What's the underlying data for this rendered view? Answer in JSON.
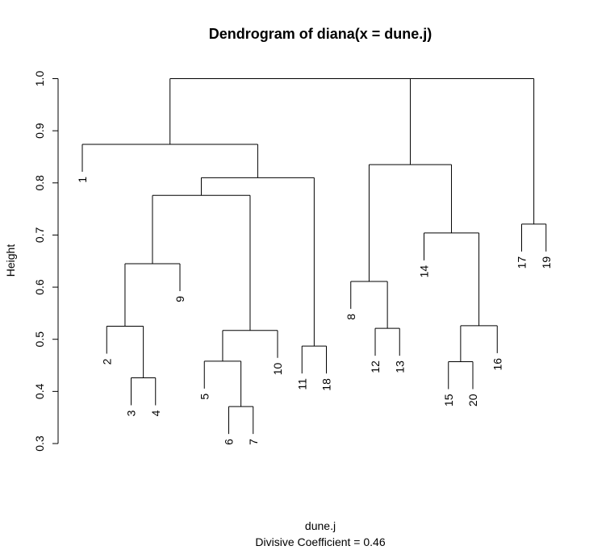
{
  "chart_data": {
    "type": "dendrogram",
    "title": "Dendrogram of  diana(x = dune.j)",
    "xlabel": "dune.j",
    "sublabel": "Divisive Coefficient =  0.46",
    "ylabel": "Height",
    "ylim": [
      0.3,
      1.0
    ],
    "yticks": [
      "0.3",
      "0.4",
      "0.5",
      "0.6",
      "0.7",
      "0.8",
      "0.9",
      "1.0"
    ],
    "leaf_order": [
      "1",
      "2",
      "3",
      "4",
      "9",
      "5",
      "6",
      "7",
      "10",
      "11",
      "18",
      "8",
      "12",
      "13",
      "14",
      "15",
      "20",
      "16",
      "17",
      "19"
    ],
    "merges": [
      {
        "id": "m1",
        "left": "6",
        "right": "7",
        "height": 0.371
      },
      {
        "id": "m2",
        "left": "3",
        "right": "4",
        "height": 0.426
      },
      {
        "id": "m3",
        "left": "15",
        "right": "20",
        "height": 0.457
      },
      {
        "id": "m4",
        "left": "5",
        "right": "m1",
        "height": 0.458
      },
      {
        "id": "m5",
        "left": "11",
        "right": "18",
        "height": 0.487
      },
      {
        "id": "m6",
        "left": "m4",
        "right": "10",
        "height": 0.517
      },
      {
        "id": "m7",
        "left": "12",
        "right": "13",
        "height": 0.521
      },
      {
        "id": "m8",
        "left": "2",
        "right": "m2",
        "height": 0.525
      },
      {
        "id": "m9",
        "left": "m3",
        "right": "16",
        "height": 0.526
      },
      {
        "id": "m10",
        "left": "8",
        "right": "m7",
        "height": 0.611
      },
      {
        "id": "m11",
        "left": "m8",
        "right": "9",
        "height": 0.645
      },
      {
        "id": "m12",
        "left": "14",
        "right": "m9",
        "height": 0.704
      },
      {
        "id": "m13",
        "left": "17",
        "right": "19",
        "height": 0.721
      },
      {
        "id": "m14",
        "left": "m11",
        "right": "m6",
        "height": 0.776
      },
      {
        "id": "m15",
        "left": "m14",
        "right": "m5",
        "height": 0.81
      },
      {
        "id": "m16",
        "left": "m10",
        "right": "m12",
        "height": 0.835
      },
      {
        "id": "m17",
        "left": "1",
        "right": "m15",
        "height": 0.874
      },
      {
        "id": "m18",
        "left": "m17",
        "right": "m16",
        "height": 1.0
      },
      {
        "id": "m19",
        "left": "m18",
        "right": "m13",
        "height": 1.0
      }
    ],
    "leaf_heights": {
      "1": 0.874,
      "2": 0.525,
      "3": 0.426,
      "4": 0.426,
      "9": 0.645,
      "5": 0.458,
      "6": 0.371,
      "7": 0.371,
      "10": 0.517,
      "11": 0.487,
      "18": 0.487,
      "8": 0.611,
      "12": 0.521,
      "13": 0.521,
      "14": 0.704,
      "15": 0.457,
      "20": 0.457,
      "16": 0.526,
      "17": 0.721,
      "19": 0.721
    }
  }
}
